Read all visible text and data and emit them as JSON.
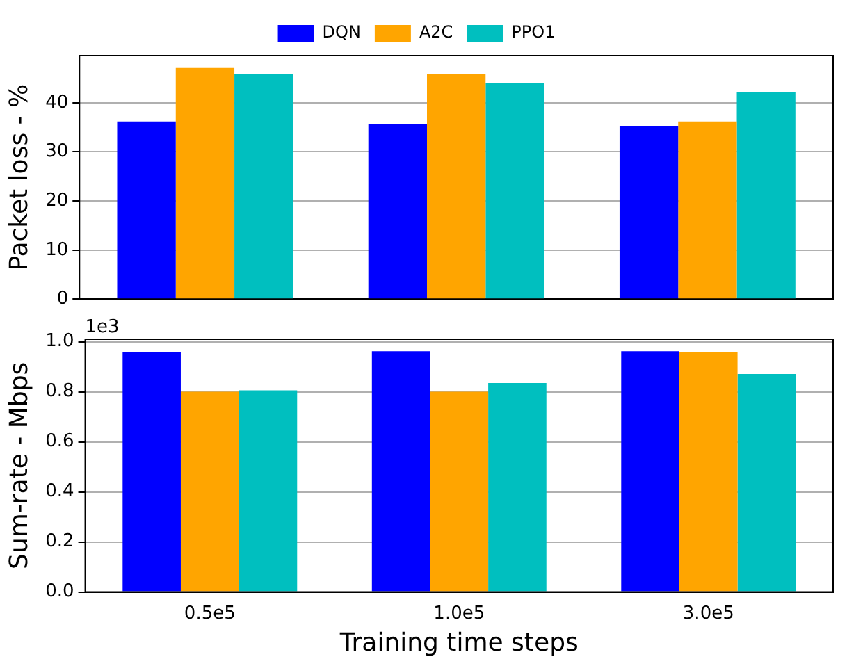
{
  "chart_data": [
    {
      "type": "bar",
      "ylabel": "Packet loss - %",
      "categories": [
        "0.5e5",
        "1.0e5",
        "3.0e5"
      ],
      "series": [
        {
          "name": "DQN",
          "color": "#0000ff",
          "values": [
            36.2,
            35.6,
            35.3
          ]
        },
        {
          "name": "A2C",
          "color": "#ffa500",
          "values": [
            47.1,
            45.9,
            36.2
          ]
        },
        {
          "name": "PPO1",
          "color": "#00bfbf",
          "values": [
            45.9,
            44.0,
            42.1
          ]
        }
      ],
      "ylim": [
        0,
        49.6
      ],
      "yticks": [
        0,
        10,
        20,
        30,
        40
      ],
      "grid": "y",
      "legend": "top",
      "tick_labels": "y"
    },
    {
      "type": "bar",
      "ylabel": "Sum-rate - Mbps",
      "xlabel": "Training time steps",
      "annotations": [
        "1e3"
      ],
      "categories": [
        "0.5e5",
        "1.0e5",
        "3.0e5"
      ],
      "series": [
        {
          "color": "#0000ff",
          "values": [
            0.958,
            0.962,
            0.962
          ]
        },
        {
          "color": "#ffa500",
          "values": [
            0.8,
            0.8,
            0.958
          ]
        },
        {
          "color": "#00bfbf",
          "values": [
            0.806,
            0.835,
            0.871
          ]
        }
      ],
      "ylim": [
        0,
        1.01
      ],
      "yticks": [
        {
          "value": 0,
          "label": "0.0"
        },
        {
          "value": 0.2,
          "label": "0.2"
        },
        {
          "value": 0.4,
          "label": "0.4"
        },
        {
          "value": 0.6,
          "label": "0.6"
        },
        {
          "value": 0.8,
          "label": "0.8"
        },
        {
          "value": 1,
          "label": "1.0"
        }
      ],
      "grid": "y",
      "legend": false
    }
  ]
}
